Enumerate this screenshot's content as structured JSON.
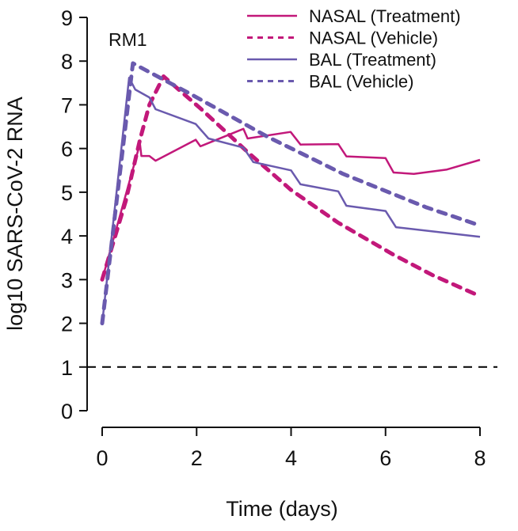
{
  "chart_data": {
    "type": "line",
    "title": "",
    "annotation": "RM1",
    "xlabel": "Time (days)",
    "ylabel": "log10 SARS-CoV-2 RNA",
    "xlim": [
      0,
      8
    ],
    "ylim": [
      0,
      9
    ],
    "xticks": [
      "0",
      "2",
      "4",
      "6",
      "8"
    ],
    "yticks": [
      "0",
      "1",
      "2",
      "3",
      "4",
      "5",
      "6",
      "7",
      "8",
      "9"
    ],
    "grid": false,
    "legend_position": "top-right",
    "reference_line": {
      "y": 1,
      "style": "dashed",
      "color": "#000000"
    },
    "series": [
      {
        "name": "NASAL (Treatment)",
        "color": "#C2187A",
        "style": "solid",
        "x": [
          0,
          0.8,
          0.83,
          1.0,
          1.13,
          1.98,
          2.08,
          2.99,
          3.08,
          3.99,
          4.2,
          5.0,
          5.17,
          6.0,
          6.17,
          6.6,
          7.3,
          8.0
        ],
        "y": [
          3.0,
          6.11,
          5.83,
          5.83,
          5.72,
          6.2,
          6.05,
          6.45,
          6.23,
          6.38,
          6.09,
          6.1,
          5.82,
          5.78,
          5.45,
          5.42,
          5.52,
          5.74
        ]
      },
      {
        "name": "NASAL (Vehicle)",
        "color": "#C2187A",
        "style": "dashed",
        "x": [
          0,
          0.5,
          0.8,
          1.0,
          1.3,
          2.1,
          3.1,
          4.0,
          5.0,
          6.17,
          7.0,
          8.0
        ],
        "y": [
          3.0,
          4.8,
          6.2,
          7.0,
          7.65,
          6.9,
          5.9,
          5.05,
          4.3,
          3.57,
          3.1,
          2.62
        ]
      },
      {
        "name": "BAL (Treatment)",
        "color": "#6A5AAE",
        "style": "solid",
        "x": [
          0,
          0.57,
          0.7,
          1.0,
          1.13,
          1.98,
          2.25,
          2.99,
          3.2,
          4.0,
          4.2,
          5.0,
          5.17,
          6.0,
          6.22,
          8.0
        ],
        "y": [
          2.0,
          7.62,
          7.35,
          7.17,
          6.9,
          6.56,
          6.23,
          6.02,
          5.69,
          5.5,
          5.18,
          5.02,
          4.69,
          4.57,
          4.2,
          3.98
        ]
      },
      {
        "name": "BAL (Vehicle)",
        "color": "#6A5AAE",
        "style": "dashed",
        "x": [
          0,
          0.65,
          1.9,
          3.5,
          5.1,
          6.85,
          8.0
        ],
        "y": [
          2.0,
          7.95,
          7.23,
          6.27,
          5.42,
          4.66,
          4.24
        ]
      }
    ]
  }
}
